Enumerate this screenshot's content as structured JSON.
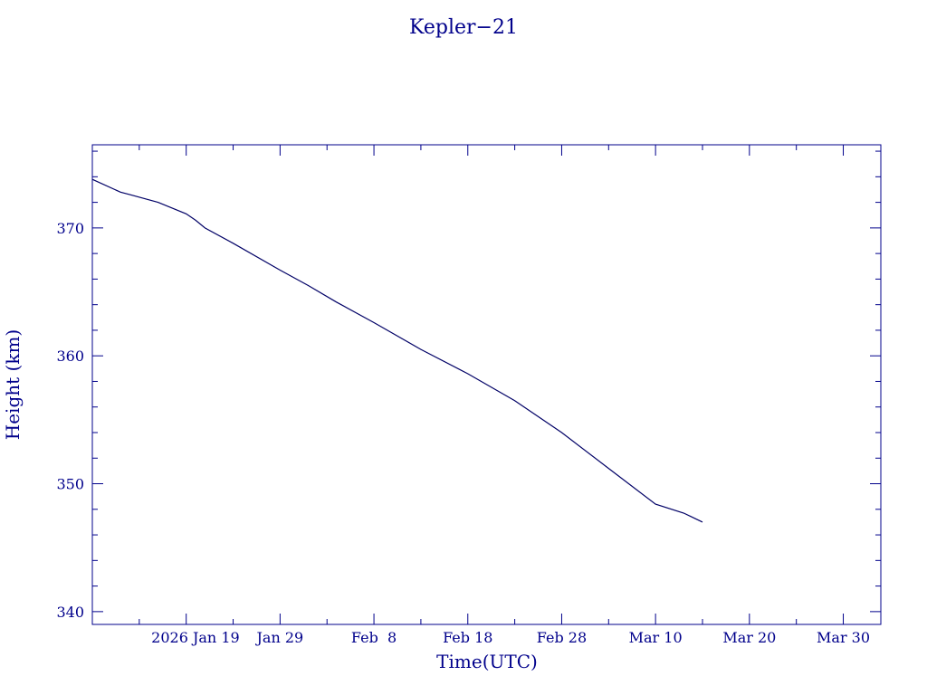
{
  "chart_data": {
    "type": "line",
    "title": "Kepler−21",
    "xlabel": "Time(UTC)",
    "ylabel": "Height (km)",
    "grid": false,
    "legend": "none",
    "colors": {
      "axes": "#00008b",
      "line": "#000066",
      "background": "#ffffff"
    },
    "xlim": [
      "2026-01-09",
      "2026-04-03"
    ],
    "ylim": [
      339,
      376.5
    ],
    "x_ticks": [
      {
        "date": "2026-01-19",
        "label": "2026 Jan 19"
      },
      {
        "date": "2026-01-29",
        "label": "Jan 29"
      },
      {
        "date": "2026-02-08",
        "label": "Feb  8"
      },
      {
        "date": "2026-02-18",
        "label": "Feb 18"
      },
      {
        "date": "2026-02-28",
        "label": "Feb 28"
      },
      {
        "date": "2026-03-10",
        "label": "Mar 10"
      },
      {
        "date": "2026-03-20",
        "label": "Mar 20"
      },
      {
        "date": "2026-03-30",
        "label": "Mar 30"
      }
    ],
    "x_minor_ticks": [
      "2026-01-14",
      "2026-01-24",
      "2026-02-03",
      "2026-02-13",
      "2026-02-23",
      "2026-03-05",
      "2026-03-15",
      "2026-03-25"
    ],
    "y_ticks": [
      {
        "value": 340,
        "label": "340"
      },
      {
        "value": 350,
        "label": "350"
      },
      {
        "value": 360,
        "label": "360"
      },
      {
        "value": 370,
        "label": "370"
      }
    ],
    "y_minor_ticks": [
      342,
      344,
      346,
      348,
      352,
      354,
      356,
      358,
      362,
      364,
      366,
      368,
      372,
      374,
      376
    ],
    "series": [
      {
        "x": [
          "2026-01-09",
          "2026-01-12",
          "2026-01-13",
          "2026-01-16",
          "2026-01-19",
          "2026-01-20",
          "2026-01-21",
          "2026-01-24",
          "2026-01-29",
          "2026-02-01",
          "2026-02-04",
          "2026-02-08",
          "2026-02-13",
          "2026-02-18",
          "2026-02-23",
          "2026-02-28",
          "2026-03-05",
          "2026-03-10",
          "2026-03-13",
          "2026-03-15"
        ],
        "values": [
          373.8,
          372.8,
          372.6,
          372.0,
          371.1,
          370.6,
          370.0,
          368.8,
          366.7,
          365.5,
          364.2,
          362.6,
          360.5,
          358.6,
          356.5,
          354.0,
          351.2,
          348.4,
          347.7,
          347.0
        ]
      }
    ]
  }
}
